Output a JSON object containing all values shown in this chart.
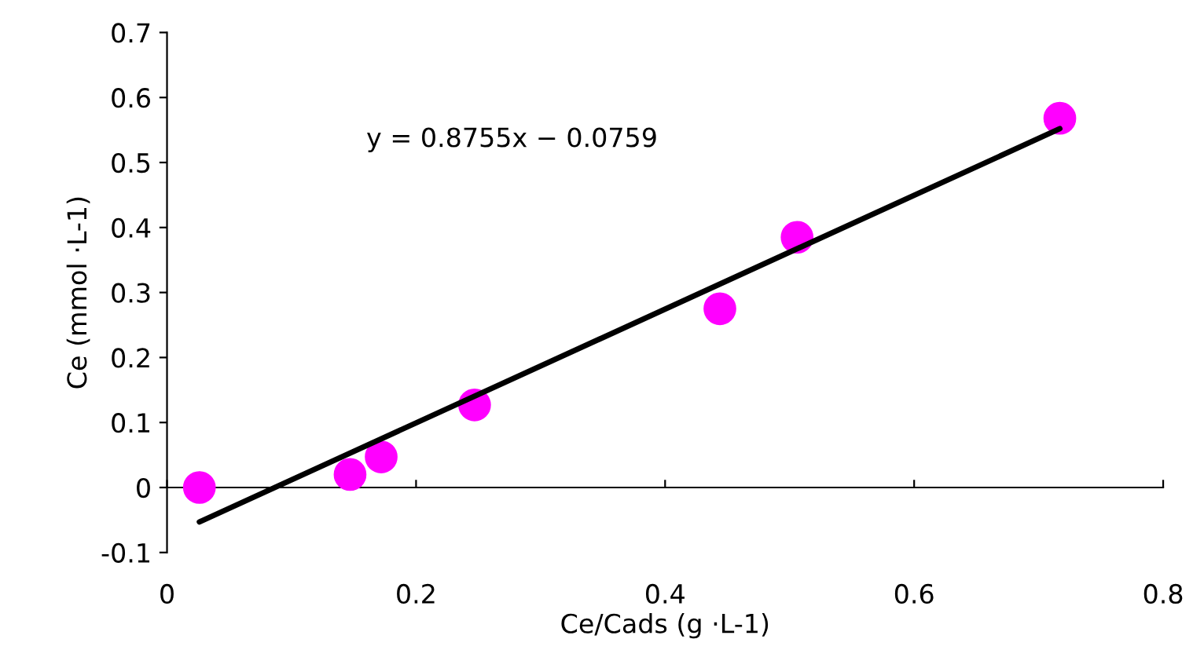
{
  "chart_data": {
    "type": "scatter",
    "xlabel": "Ce/Cads (g ·L-1)",
    "ylabel": "Ce (mmol ·L-1)",
    "xlim": [
      0,
      0.8
    ],
    "ylim": [
      -0.1,
      0.7
    ],
    "xticks": [
      0,
      0.2,
      0.4,
      0.6,
      0.8
    ],
    "yticks": [
      -0.1,
      0,
      0.1,
      0.2,
      0.3,
      0.4,
      0.5,
      0.6,
      0.7
    ],
    "legend": false,
    "marker": "circle",
    "annotations": [
      "y = 0.8755x − 0.0759"
    ],
    "series": [
      {
        "color": "#ff00ff",
        "x": [
          0.026,
          0.147,
          0.172,
          0.247,
          0.444,
          0.506,
          0.717
        ],
        "values": [
          0.0,
          0.02,
          0.047,
          0.127,
          0.275,
          0.385,
          0.568
        ]
      },
      {
        "type": "line",
        "marker": "none",
        "color": "#000000",
        "x": [
          0.026,
          0.717
        ],
        "values": [
          -0.053,
          0.552
        ]
      }
    ]
  }
}
